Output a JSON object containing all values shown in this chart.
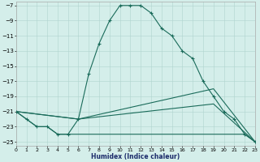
{
  "xlabel": "Humidex (Indice chaleur)",
  "background_color": "#d4eeea",
  "line_color": "#1a6b5a",
  "grid_color": "#b0d4ce",
  "xlim": [
    0,
    23
  ],
  "ylim": [
    -25.5,
    -6.5
  ],
  "x_ticks": [
    0,
    1,
    2,
    3,
    4,
    5,
    6,
    7,
    8,
    9,
    10,
    11,
    12,
    13,
    14,
    15,
    16,
    17,
    18,
    19,
    20,
    21,
    22,
    23
  ],
  "y_ticks": [
    -25,
    -23,
    -21,
    -19,
    -17,
    -15,
    -13,
    -11,
    -9,
    -7
  ],
  "curve1_x": [
    0,
    1,
    2,
    3,
    4,
    5,
    6,
    7,
    8,
    9,
    10,
    11,
    12,
    13,
    14,
    15,
    16,
    17,
    18,
    19,
    20,
    21,
    22,
    23
  ],
  "curve1_y": [
    -21,
    -22,
    -23,
    -23,
    -24,
    -24,
    -22,
    -16,
    -12,
    -9,
    -7,
    -7,
    -7,
    -8,
    -10,
    -11,
    -13,
    -14,
    -17,
    -19,
    -21,
    -22,
    -24,
    -25
  ],
  "curve2_x": [
    0,
    1,
    2,
    3,
    4,
    5,
    6,
    7,
    8,
    9,
    10,
    11,
    12,
    13,
    14,
    15,
    16,
    17,
    18,
    19,
    20,
    21,
    22,
    23
  ],
  "curve2_y": [
    -21,
    -22,
    -23,
    -23,
    -24,
    -24,
    -24,
    -24,
    -24,
    -24,
    -24,
    -24,
    -24,
    -24,
    -24,
    -24,
    -24,
    -24,
    -24,
    -24,
    -24,
    -24,
    -24,
    -25
  ],
  "curve3_x": [
    0,
    6,
    19,
    23
  ],
  "curve3_y": [
    -21,
    -22,
    -18,
    -25
  ],
  "curve4_x": [
    0,
    6,
    19,
    23
  ],
  "curve4_y": [
    -21,
    -22,
    -20,
    -25
  ]
}
